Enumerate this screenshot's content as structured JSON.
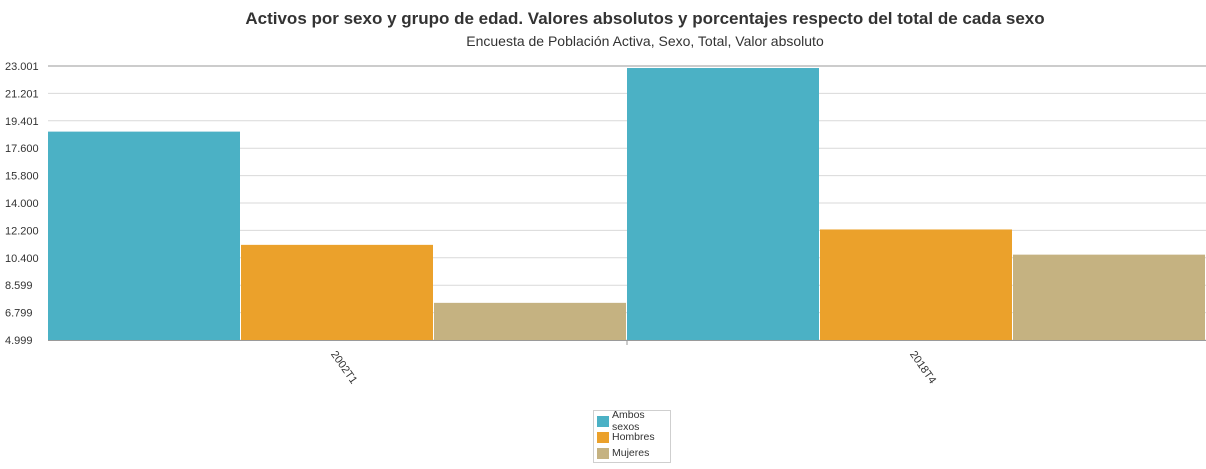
{
  "chart_data": {
    "type": "bar",
    "title": "Activos por sexo y grupo de edad. Valores absolutos y porcentajes respecto del total de cada sexo",
    "subtitle": "Encuesta de Población Activa, Sexo, Total, Valor absoluto",
    "categories": [
      "2002T1",
      "2018T4"
    ],
    "series": [
      {
        "name": "Ambos sexos",
        "color": "#4bb1c5",
        "values": [
          18690,
          22868
        ]
      },
      {
        "name": "Hombres",
        "color": "#eba12b",
        "values": [
          11250,
          12261
        ]
      },
      {
        "name": "Mujeres",
        "color": "#c5b281",
        "values": [
          7440,
          10607
        ]
      }
    ],
    "ylim": [
      4999,
      23001
    ],
    "yticks": [
      "23.001",
      "21.201",
      "19.401",
      "17.600",
      "15.800",
      "14.000",
      "12.200",
      "10.400",
      "8.599",
      "6.799",
      "4.999"
    ],
    "ytick_values": [
      23001,
      21201,
      19401,
      17600,
      15800,
      14000,
      12200,
      10400,
      8599,
      6799,
      4999
    ],
    "grid": true,
    "legend_position": "bottom-center",
    "xlabel": "",
    "ylabel": ""
  }
}
